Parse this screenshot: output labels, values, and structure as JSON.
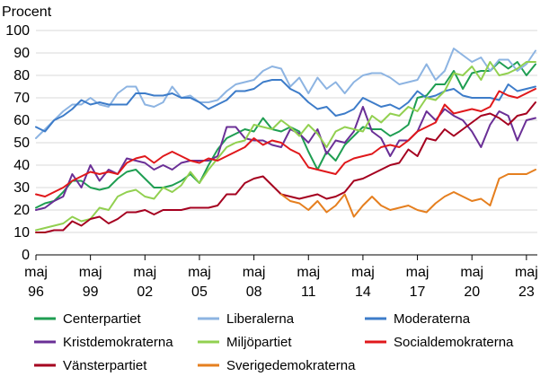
{
  "chart_data": {
    "type": "line",
    "unit_label": "Procent",
    "ylim": [
      0,
      100
    ],
    "y_ticks": [
      0,
      10,
      20,
      30,
      40,
      50,
      60,
      70,
      80,
      90,
      100
    ],
    "x_range": [
      0,
      27.6
    ],
    "x_ticks": [
      {
        "pos": 0,
        "line1": "maj",
        "line2": "96"
      },
      {
        "pos": 3,
        "line1": "maj",
        "line2": "99"
      },
      {
        "pos": 6,
        "line1": "maj",
        "line2": "02"
      },
      {
        "pos": 9,
        "line1": "maj",
        "line2": "05"
      },
      {
        "pos": 12,
        "line1": "maj",
        "line2": "08"
      },
      {
        "pos": 15,
        "line1": "maj",
        "line2": "11"
      },
      {
        "pos": 18,
        "line1": "maj",
        "line2": "14"
      },
      {
        "pos": 21,
        "line1": "maj",
        "line2": "17"
      },
      {
        "pos": 24,
        "line1": "maj",
        "line2": "20"
      },
      {
        "pos": 27,
        "line1": "maj",
        "line2": "23"
      }
    ],
    "grid": "horizontal",
    "legend_position": "bottom",
    "x": [
      0,
      0.5,
      1,
      1.5,
      2,
      2.5,
      3,
      3.5,
      4,
      4.5,
      5,
      5.5,
      6,
      6.5,
      7,
      7.5,
      8,
      8.5,
      9,
      9.5,
      10,
      10.5,
      11,
      11.5,
      12,
      12.5,
      13,
      13.5,
      14,
      14.5,
      15,
      15.5,
      16,
      16.5,
      17,
      17.5,
      18,
      18.5,
      19,
      19.5,
      20,
      20.5,
      21,
      21.5,
      22,
      22.5,
      23,
      23.5,
      24,
      24.5,
      25,
      25.5,
      26,
      26.5,
      27,
      27.5
    ],
    "series": [
      {
        "name": "Centerpartiet",
        "color": "#1f9e52",
        "values": [
          21,
          23,
          24,
          28,
          33,
          33,
          30,
          29,
          30,
          34,
          37,
          38,
          34,
          30,
          30,
          31,
          33,
          36,
          32,
          40,
          47,
          52,
          54,
          56,
          55,
          61,
          56,
          55,
          57,
          55,
          46,
          38,
          46,
          42,
          49,
          53,
          57,
          56,
          56,
          53,
          55,
          58,
          70,
          71,
          76,
          76,
          82,
          74,
          81,
          82,
          82,
          86,
          83,
          86,
          80,
          85
        ]
      },
      {
        "name": "Liberalerna",
        "color": "#8db4e2",
        "values": [
          52,
          56,
          60,
          64,
          67,
          67,
          70,
          67,
          66,
          72,
          75,
          75,
          67,
          66,
          68,
          75,
          70,
          71,
          68,
          68,
          69,
          73,
          76,
          77,
          78,
          82,
          84,
          83,
          75,
          79,
          72,
          79,
          74,
          77,
          72,
          77,
          80,
          81,
          81,
          79,
          76,
          77,
          78,
          85,
          78,
          82,
          92,
          89,
          86,
          88,
          82,
          87,
          87,
          82,
          85,
          91
        ]
      },
      {
        "name": "Moderaterna",
        "color": "#3d7cc9",
        "values": [
          57,
          55,
          60,
          62,
          65,
          69,
          67,
          68,
          67,
          67,
          67,
          72,
          72,
          71,
          71,
          72,
          70,
          70,
          68,
          65,
          67,
          69,
          73,
          73,
          74,
          77,
          78,
          78,
          74,
          72,
          68,
          65,
          66,
          62,
          63,
          65,
          70,
          68,
          66,
          67,
          65,
          68,
          73,
          70,
          71,
          73,
          74,
          71,
          70,
          70,
          70,
          69,
          76,
          73,
          74,
          75
        ]
      },
      {
        "name": "Kristdemokraterna",
        "color": "#6a2f96",
        "values": [
          20,
          21,
          24,
          26,
          36,
          30,
          40,
          33,
          38,
          36,
          43,
          42,
          41,
          38,
          40,
          38,
          41,
          42,
          42,
          42,
          44,
          57,
          57,
          52,
          51,
          51,
          49,
          48,
          56,
          54,
          50,
          56,
          45,
          51,
          50,
          55,
          66,
          55,
          52,
          44,
          51,
          51,
          55,
          64,
          60,
          65,
          62,
          60,
          55,
          48,
          58,
          64,
          62,
          51,
          60,
          61
        ]
      },
      {
        "name": "Miljöpartiet",
        "color": "#92d050",
        "values": [
          11,
          12,
          13,
          14,
          17,
          15,
          16,
          21,
          20,
          26,
          28,
          29,
          26,
          25,
          30,
          28,
          31,
          37,
          32,
          38,
          43,
          48,
          50,
          51,
          58,
          57,
          56,
          60,
          57,
          53,
          58,
          54,
          48,
          55,
          57,
          56,
          55,
          62,
          59,
          63,
          62,
          66,
          64,
          70,
          69,
          73,
          81,
          80,
          84,
          78,
          86,
          80,
          81,
          83,
          86,
          86
        ]
      },
      {
        "name": "Socialdemokraterna",
        "color": "#e0181b",
        "values": [
          27,
          26,
          28,
          30,
          33,
          35,
          37,
          36,
          37,
          36,
          41,
          43,
          44,
          41,
          44,
          46,
          44,
          42,
          41,
          43,
          42,
          44,
          46,
          48,
          52,
          49,
          51,
          50,
          47,
          45,
          39,
          38,
          37,
          36,
          41,
          43,
          44,
          45,
          48,
          49,
          48,
          51,
          55,
          57,
          59,
          67,
          63,
          64,
          65,
          64,
          66,
          73,
          71,
          70,
          72,
          74
        ]
      },
      {
        "name": "Vänsterpartiet",
        "color": "#a5001f",
        "values": [
          10,
          10,
          11,
          11,
          15,
          13,
          16,
          17,
          14,
          16,
          19,
          19,
          20,
          18,
          20,
          20,
          20,
          21,
          21,
          21,
          22,
          27,
          27,
          32,
          34,
          35,
          31,
          27,
          26,
          25,
          26,
          27,
          25,
          26,
          28,
          33,
          34,
          36,
          38,
          40,
          41,
          47,
          44,
          52,
          51,
          56,
          53,
          56,
          59,
          62,
          63,
          61,
          58,
          62,
          63,
          68
        ]
      },
      {
        "name": "Sverigedemokraterna",
        "color": "#e57f1f",
        "values": [
          null,
          null,
          null,
          null,
          null,
          null,
          null,
          null,
          null,
          null,
          null,
          null,
          null,
          null,
          null,
          null,
          null,
          null,
          null,
          null,
          null,
          null,
          null,
          null,
          null,
          null,
          null,
          27,
          24,
          23,
          20,
          24,
          19,
          22,
          27,
          17,
          22,
          26,
          22,
          20,
          21,
          22,
          20,
          19,
          23,
          26,
          28,
          26,
          24,
          25,
          22,
          34,
          36,
          36,
          36,
          38
        ]
      }
    ]
  }
}
